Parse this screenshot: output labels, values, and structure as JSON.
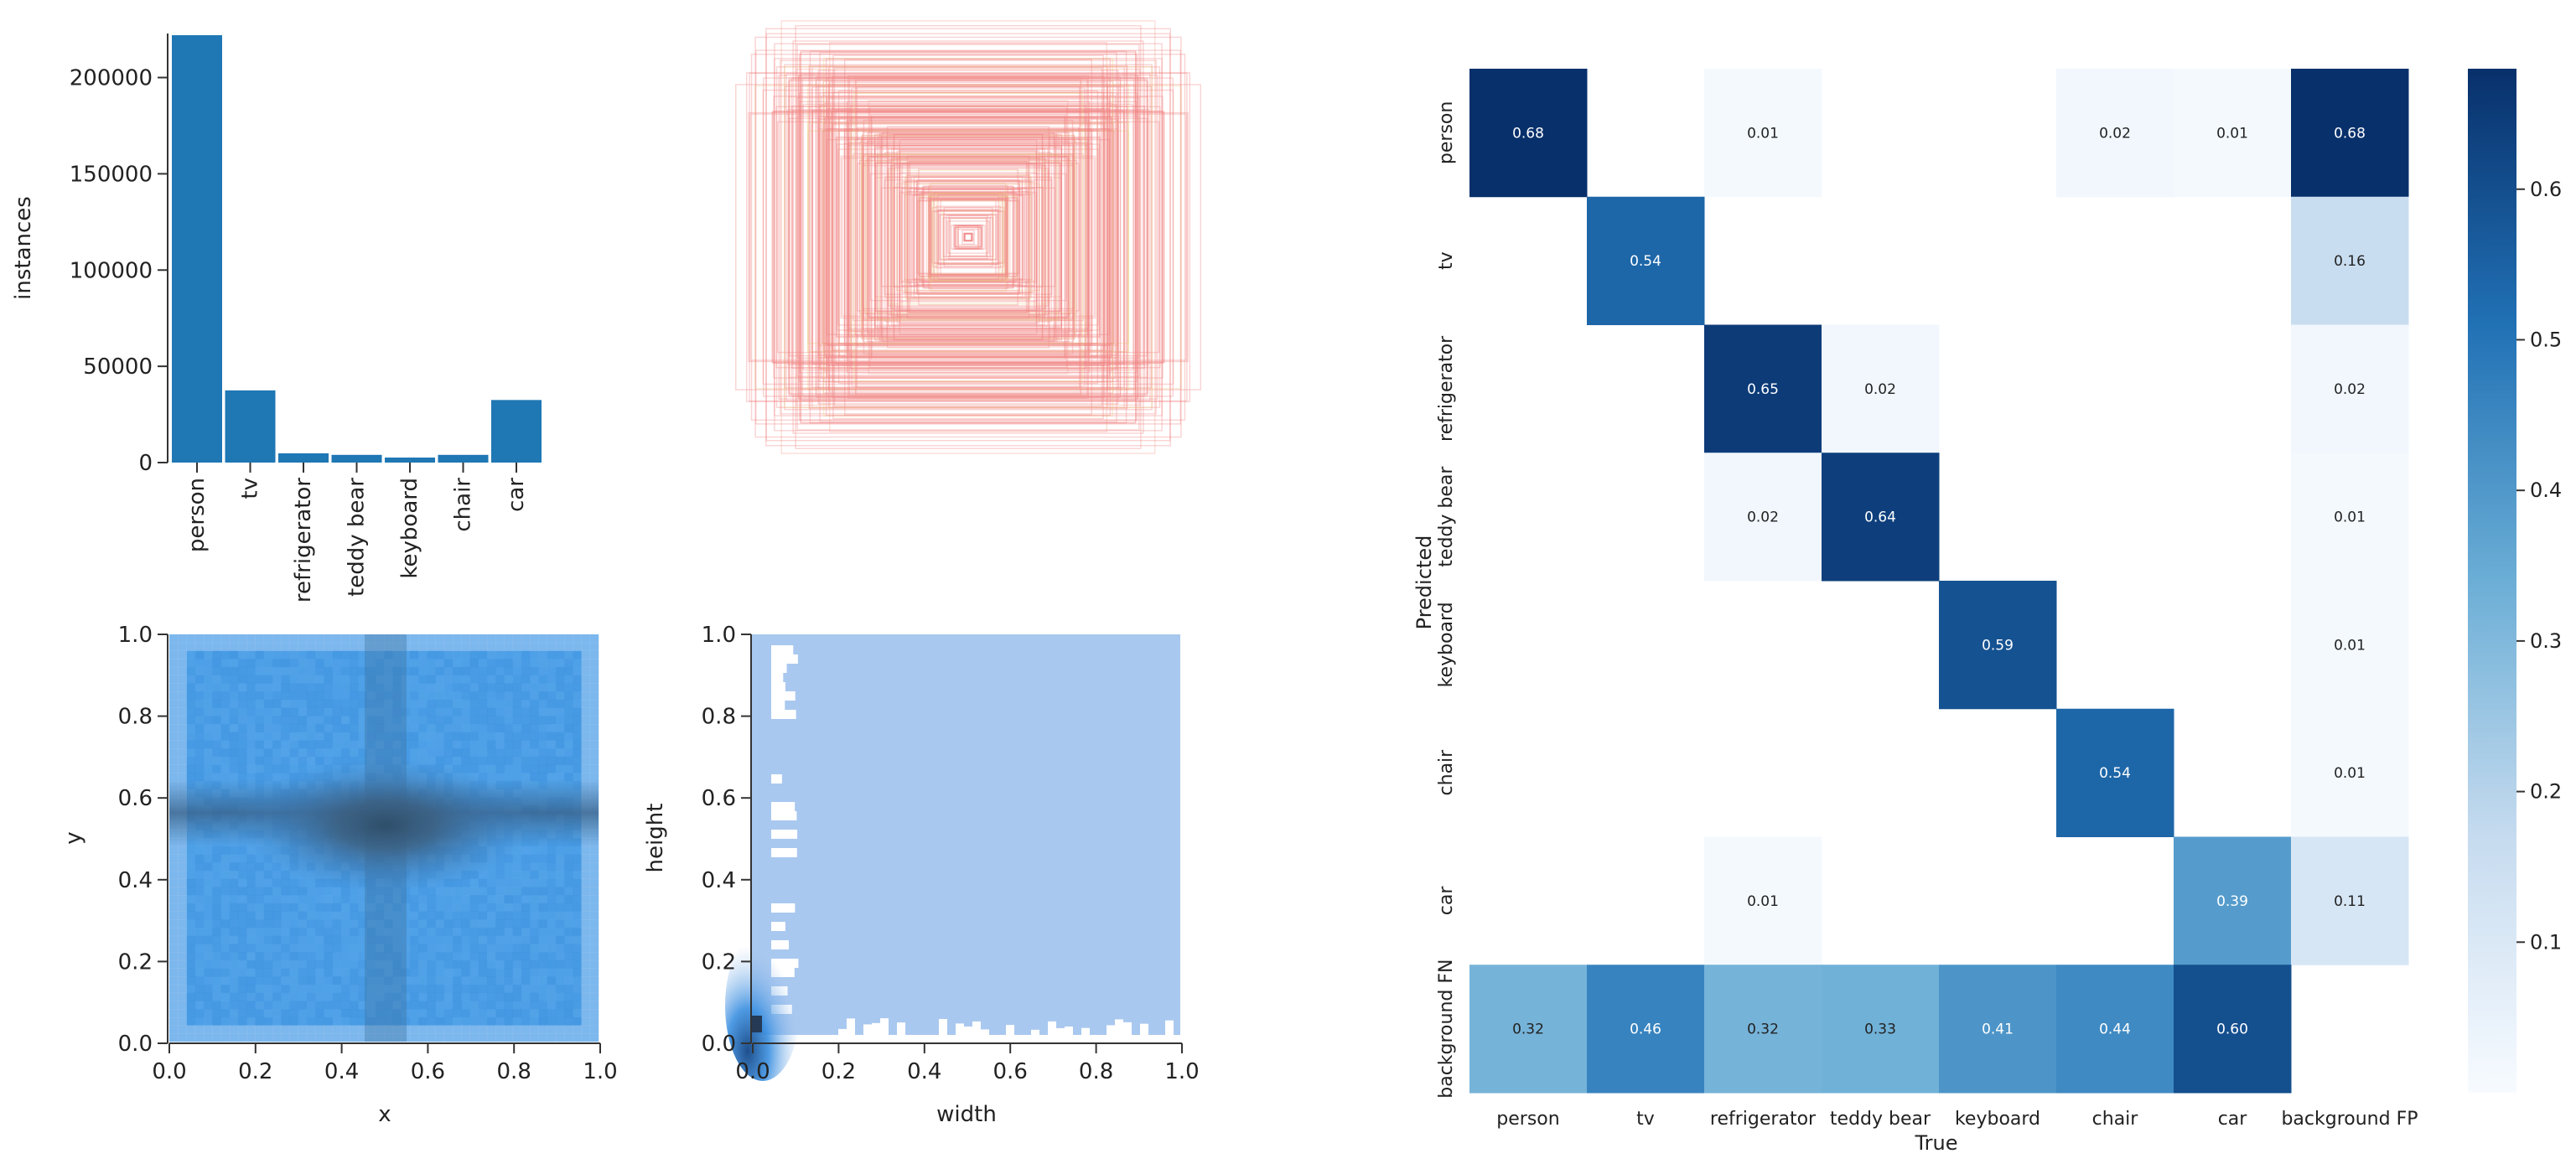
{
  "chart_data": [
    {
      "type": "bar",
      "categories": [
        "person",
        "tv",
        "refrigerator",
        "teddy bear",
        "keyboard",
        "chair",
        "car"
      ],
      "values": [
        222000,
        37500,
        4800,
        4000,
        2600,
        4000,
        32500
      ],
      "ylabel": "instances",
      "ylim": [
        0,
        222000
      ],
      "yticks": [
        "0",
        "50000",
        "100000",
        "150000",
        "200000"
      ],
      "color": "#1f77b4"
    },
    {
      "type": "scatter",
      "description_free": true,
      "box_colors": [
        "#f08080",
        "#f4a090",
        "#e8d080"
      ]
    },
    {
      "type": "heatmap",
      "xlabel": "x",
      "ylabel": "y",
      "xlim": [
        0,
        1
      ],
      "ylim": [
        0,
        1
      ],
      "xticks": [
        "0.0",
        "0.2",
        "0.4",
        "0.6",
        "0.8",
        "1.0"
      ],
      "yticks": [
        "0.0",
        "0.2",
        "0.4",
        "0.6",
        "0.8",
        "1.0"
      ],
      "peak": [
        0.5,
        0.52
      ]
    },
    {
      "type": "heatmap",
      "xlabel": "width",
      "ylabel": "height",
      "xlim": [
        0,
        1
      ],
      "ylim": [
        0,
        1
      ],
      "xticks": [
        "0.0",
        "0.2",
        "0.4",
        "0.6",
        "0.8",
        "1.0"
      ],
      "yticks": [
        "0.0",
        "0.2",
        "0.4",
        "0.6",
        "0.8",
        "1.0"
      ],
      "peak": [
        0.02,
        0.04
      ]
    },
    {
      "type": "heatmap",
      "xlabel": "True",
      "ylabel": "Predicted",
      "labels": [
        "person",
        "tv",
        "refrigerator",
        "teddy bear",
        "keyboard",
        "chair",
        "car",
        "background FN"
      ],
      "xlabels": [
        "person",
        "tv",
        "refrigerator",
        "teddy bear",
        "keyboard",
        "chair",
        "car",
        "background FP"
      ],
      "matrix": [
        [
          0.68,
          null,
          0.01,
          null,
          null,
          0.02,
          0.01,
          0.68
        ],
        [
          null,
          0.54,
          null,
          null,
          null,
          null,
          null,
          0.16
        ],
        [
          null,
          null,
          0.65,
          0.02,
          null,
          null,
          null,
          0.02
        ],
        [
          null,
          null,
          0.02,
          0.64,
          null,
          null,
          null,
          0.01
        ],
        [
          null,
          null,
          null,
          null,
          0.59,
          null,
          null,
          0.01
        ],
        [
          null,
          null,
          null,
          null,
          null,
          0.54,
          null,
          0.01
        ],
        [
          null,
          null,
          0.01,
          null,
          null,
          null,
          0.39,
          0.11
        ],
        [
          0.32,
          0.46,
          0.32,
          0.33,
          0.41,
          0.44,
          0.6,
          null
        ]
      ],
      "colorbar_ticks": [
        "0.1",
        "0.2",
        "0.3",
        "0.4",
        "0.5",
        "0.6"
      ],
      "vmax": 0.68
    }
  ]
}
